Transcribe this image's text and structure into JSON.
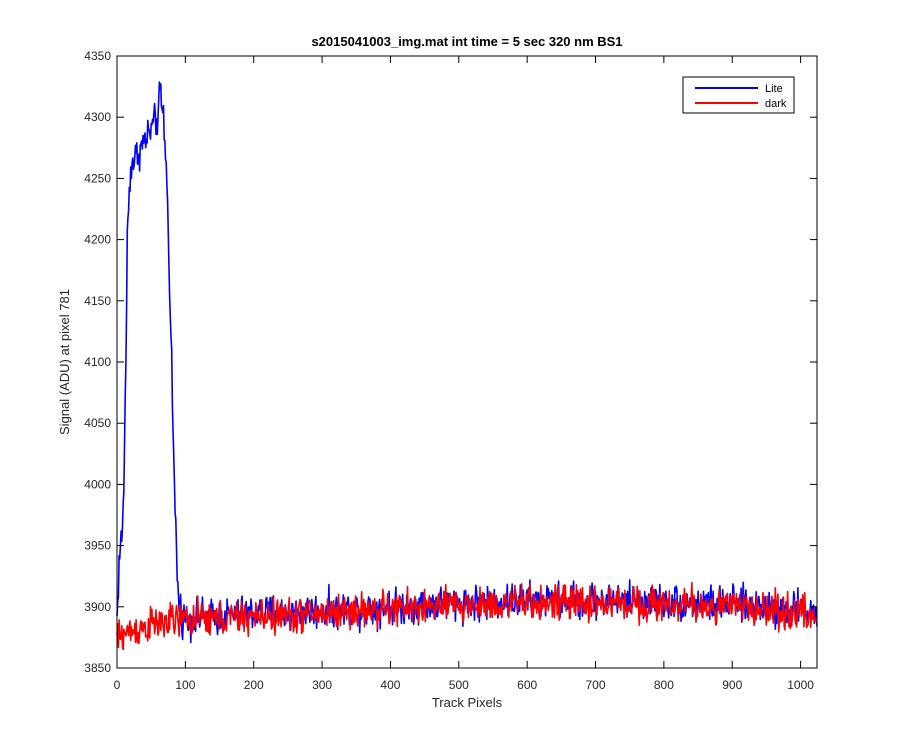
{
  "chart_data": {
    "type": "line",
    "title": "s2015041003_img.mat int time = 5 sec  320 nm BS1",
    "xlabel": "Track Pixels",
    "ylabel": "Signal (ADU) at pixel 781",
    "xlim": [
      0,
      1024
    ],
    "ylim": [
      3850,
      4350
    ],
    "xticks": [
      0,
      100,
      200,
      300,
      400,
      500,
      600,
      700,
      800,
      900,
      1000
    ],
    "yticks": [
      3850,
      3900,
      3950,
      4000,
      4050,
      4100,
      4150,
      4200,
      4250,
      4300,
      4350
    ],
    "grid": false,
    "legend_position": "top-right",
    "series": [
      {
        "name": "Lite",
        "color": "#0000ff",
        "x": [
          0,
          3,
          5,
          8,
          10,
          13,
          15,
          18,
          20,
          25,
          30,
          35,
          40,
          45,
          50,
          55,
          60,
          63,
          65,
          68,
          70,
          73,
          75,
          78,
          80,
          82,
          85,
          88,
          90,
          95,
          100,
          150,
          200,
          250,
          300,
          350,
          400,
          450,
          500,
          550,
          600,
          650,
          700,
          750,
          800,
          850,
          900,
          950,
          1000,
          1024
        ],
        "values": [
          3890,
          3935,
          3950,
          3960,
          4000,
          4100,
          4200,
          4240,
          4260,
          4265,
          4270,
          4275,
          4280,
          4285,
          4290,
          4295,
          4300,
          4320,
          4310,
          4300,
          4280,
          4250,
          4200,
          4150,
          4100,
          4040,
          3980,
          3930,
          3905,
          3893,
          3890,
          3892,
          3895,
          3895,
          3897,
          3898,
          3900,
          3902,
          3903,
          3904,
          3905,
          3905,
          3905,
          3905,
          3904,
          3903,
          3902,
          3900,
          3898,
          3895
        ],
        "noise_amplitude": 12
      },
      {
        "name": "dark",
        "color": "#ff0000",
        "x": [
          0,
          20,
          50,
          100,
          150,
          200,
          250,
          300,
          350,
          400,
          450,
          500,
          550,
          600,
          650,
          700,
          750,
          800,
          850,
          900,
          950,
          1000,
          1024
        ],
        "values": [
          3875,
          3880,
          3885,
          3890,
          3890,
          3892,
          3893,
          3895,
          3897,
          3898,
          3900,
          3901,
          3902,
          3903,
          3903,
          3903,
          3903,
          3902,
          3901,
          3900,
          3898,
          3895,
          3890
        ],
        "noise_amplitude": 12
      }
    ]
  }
}
